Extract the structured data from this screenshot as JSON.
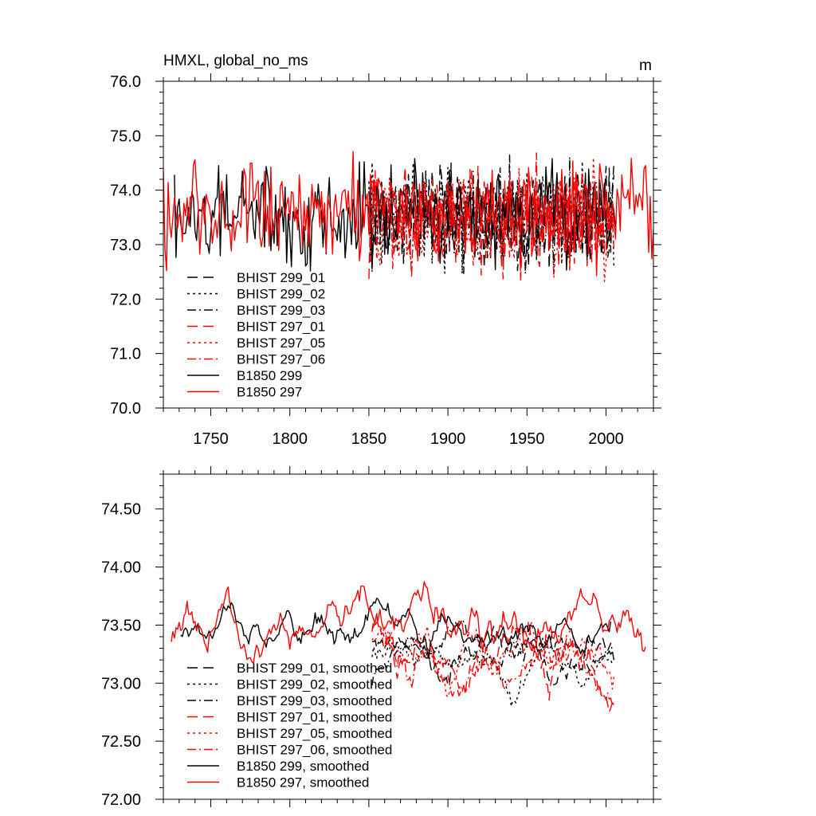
{
  "chart_data": [
    {
      "type": "line",
      "title": "HMXL, global_no_ms",
      "units": "m",
      "xlabel": "",
      "ylabel": "",
      "xlim": [
        1720,
        2030
      ],
      "ylim": [
        70.0,
        76.0
      ],
      "xticks": [
        1750,
        1800,
        1850,
        1900,
        1950,
        2000
      ],
      "yticks": [
        70.0,
        71.0,
        72.0,
        73.0,
        74.0,
        75.0,
        76.0
      ],
      "ytick_labels": [
        "70.0",
        "71.0",
        "72.0",
        "73.0",
        "74.0",
        "75.0",
        "76.0"
      ],
      "grid": false,
      "legend_position": "bottom-left",
      "series": [
        {
          "name": "BHIST 299_01",
          "color": "#000000",
          "dash": "long-dash",
          "x_start": 1850,
          "x_end": 2005,
          "mean": 73.5,
          "amplitude": 0.85,
          "seed": 11
        },
        {
          "name": "BHIST 299_02",
          "color": "#000000",
          "dash": "dot",
          "x_start": 1850,
          "x_end": 2005,
          "mean": 73.5,
          "amplitude": 0.85,
          "seed": 23
        },
        {
          "name": "BHIST 299_03",
          "color": "#000000",
          "dash": "dash-dot",
          "x_start": 1850,
          "x_end": 2005,
          "mean": 73.5,
          "amplitude": 0.85,
          "seed": 37
        },
        {
          "name": "BHIST 297_01",
          "color": "#ff0000",
          "dash": "long-dash",
          "x_start": 1850,
          "x_end": 2005,
          "mean": 73.5,
          "amplitude": 0.85,
          "seed": 41
        },
        {
          "name": "BHIST 297_05",
          "color": "#ff0000",
          "dash": "dot",
          "x_start": 1850,
          "x_end": 2005,
          "mean": 73.4,
          "amplitude": 0.85,
          "seed": 53
        },
        {
          "name": "BHIST 297_06",
          "color": "#ff0000",
          "dash": "dash-dot",
          "x_start": 1850,
          "x_end": 2005,
          "mean": 73.5,
          "amplitude": 0.85,
          "seed": 67
        },
        {
          "name": "B1850 299",
          "color": "#000000",
          "dash": "solid",
          "x_start": 1727,
          "x_end": 2006,
          "mean": 73.5,
          "amplitude": 0.8,
          "seed": 79
        },
        {
          "name": "B1850 297",
          "color": "#ff0000",
          "dash": "solid",
          "x_start": 1720,
          "x_end": 2030,
          "mean": 73.6,
          "amplitude": 0.75,
          "seed": 97
        }
      ]
    },
    {
      "type": "line",
      "title": "",
      "xlabel": "",
      "ylabel": "",
      "xlim": [
        1720,
        2030
      ],
      "ylim": [
        72.0,
        74.8
      ],
      "xticks": [
        1750,
        1800,
        1850,
        1900,
        1950,
        2000
      ],
      "yticks": [
        72.0,
        72.5,
        73.0,
        73.5,
        74.0,
        74.5
      ],
      "ytick_labels": [
        "72.00",
        "72.50",
        "73.00",
        "73.50",
        "74.00",
        "74.50"
      ],
      "grid": false,
      "legend_position": "bottom-left",
      "series": [
        {
          "name": "BHIST 299_01, smoothed",
          "color": "#000000",
          "dash": "long-dash",
          "x_start": 1852,
          "x_end": 2005,
          "mean": 73.3,
          "amplitude": 0.32,
          "seed": 111
        },
        {
          "name": "BHIST 299_02, smoothed",
          "color": "#000000",
          "dash": "dot",
          "x_start": 1852,
          "x_end": 2005,
          "mean": 73.2,
          "amplitude": 0.4,
          "seed": 123
        },
        {
          "name": "BHIST 299_03, smoothed",
          "color": "#000000",
          "dash": "dash-dot",
          "x_start": 1852,
          "x_end": 2005,
          "mean": 73.3,
          "amplitude": 0.32,
          "seed": 137
        },
        {
          "name": "BHIST 297_01, smoothed",
          "color": "#ff0000",
          "dash": "long-dash",
          "x_start": 1852,
          "x_end": 2005,
          "mean": 73.2,
          "amplitude": 0.45,
          "seed": 141
        },
        {
          "name": "BHIST 297_05, smoothed",
          "color": "#ff0000",
          "dash": "dot",
          "x_start": 1852,
          "x_end": 2005,
          "mean": 73.3,
          "amplitude": 0.42,
          "seed": 153
        },
        {
          "name": "BHIST 297_06, smoothed",
          "color": "#ff0000",
          "dash": "dash-dot",
          "x_start": 1852,
          "x_end": 2005,
          "mean": 73.2,
          "amplitude": 0.4,
          "seed": 167
        },
        {
          "name": "B1850 299, smoothed",
          "color": "#000000",
          "dash": "solid",
          "x_start": 1731,
          "x_end": 2003,
          "mean": 73.5,
          "amplitude": 0.28,
          "seed": 179
        },
        {
          "name": "B1850 297, smoothed",
          "color": "#ff0000",
          "dash": "solid",
          "x_start": 1725,
          "x_end": 2025,
          "mean": 73.55,
          "amplitude": 0.38,
          "seed": 197
        }
      ]
    }
  ]
}
